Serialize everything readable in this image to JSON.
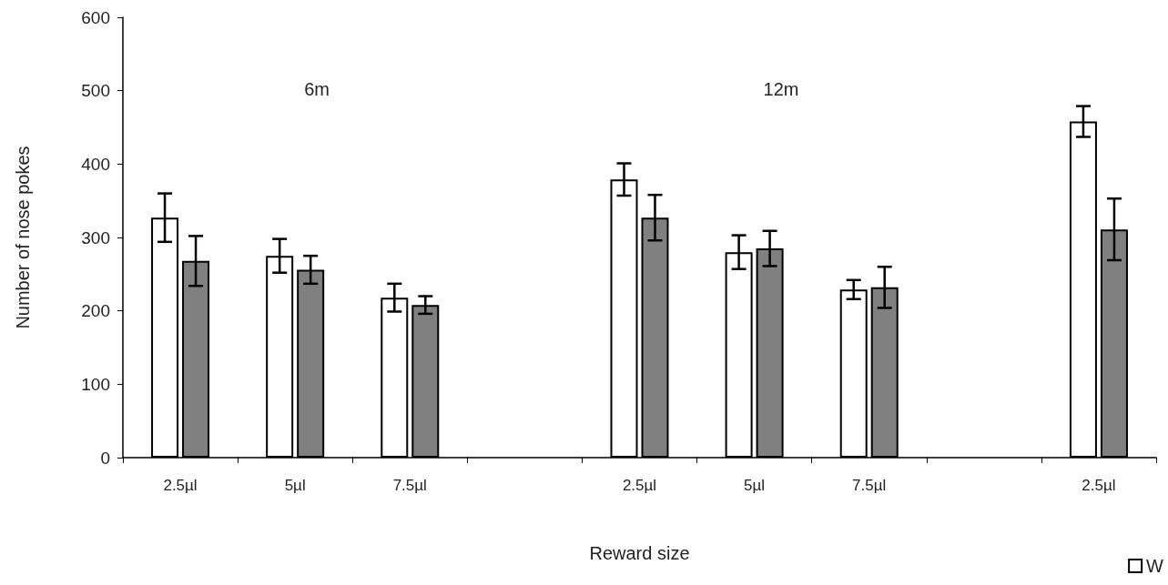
{
  "chart_data": {
    "type": "bar",
    "xlabel": "Reward size",
    "ylabel": "Number of nose pokes",
    "categories": [
      "2.5µl",
      "5µl",
      "7.5µl",
      null,
      "2.5µl",
      "5µl",
      "7.5µl",
      null,
      "2.5µl"
    ],
    "series": [
      {
        "name": "W",
        "color": "#ffffff",
        "values": [
          327,
          275,
          218,
          null,
          379,
          280,
          229,
          null,
          458
        ],
        "errors": [
          33,
          23,
          19,
          null,
          22,
          23,
          13,
          null,
          21
        ]
      },
      {
        "color": "#808080",
        "values": [
          268,
          256,
          208,
          null,
          327,
          285,
          232,
          null,
          311
        ],
        "errors": [
          34,
          19,
          12,
          null,
          31,
          24,
          28,
          null,
          42
        ]
      }
    ],
    "ylim": [
      0,
      600
    ],
    "yticks": [
      0,
      100,
      200,
      300,
      400,
      500,
      600
    ],
    "annotations": [
      "6m",
      "12m"
    ],
    "grid": false,
    "legend": "bottom right"
  }
}
